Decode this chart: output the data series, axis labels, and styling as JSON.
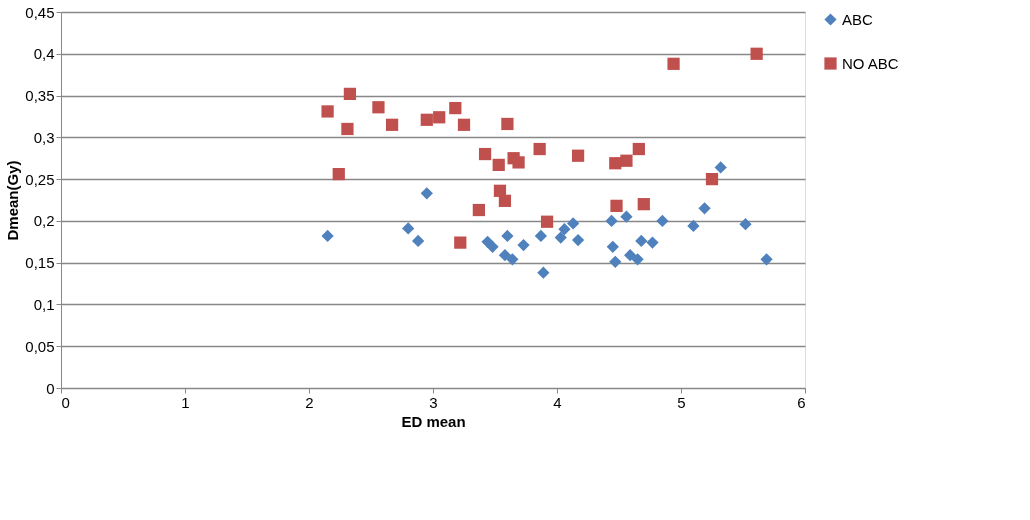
{
  "chart_data": {
    "type": "scatter",
    "xlabel": "ED mean",
    "ylabel": "Dmean(Gy)",
    "xlim": [
      0,
      6
    ],
    "xticks": [
      0,
      1,
      2,
      3,
      4,
      5,
      6
    ],
    "ylim": [
      0,
      0.45
    ],
    "yticks": [
      {
        "value": 0,
        "label": "0"
      },
      {
        "value": 0.05,
        "label": "0,05"
      },
      {
        "value": 0.1,
        "label": "0,1"
      },
      {
        "value": 0.15,
        "label": "0,15"
      },
      {
        "value": 0.2,
        "label": "0,2"
      },
      {
        "value": 0.25,
        "label": "0,25"
      },
      {
        "value": 0.3,
        "label": "0,3"
      },
      {
        "value": 0.35,
        "label": "0,35"
      },
      {
        "value": 0.4,
        "label": "0,4"
      },
      {
        "value": 0.45,
        "label": "0,45"
      }
    ],
    "grid": "y",
    "legend": "right",
    "series": [
      {
        "name": "ABC",
        "color": "#4f81bd",
        "marker": "diamond",
        "x": [
          2.15,
          2.8,
          2.88,
          2.95,
          3.44,
          3.48,
          3.6,
          3.58,
          3.64,
          3.73,
          3.87,
          3.89,
          4.03,
          4.06,
          4.13,
          4.17,
          4.44,
          4.45,
          4.47,
          4.56,
          4.59,
          4.65,
          4.68,
          4.77,
          4.85,
          5.1,
          5.19,
          5.32,
          5.52,
          5.69
        ],
        "values": [
          0.182,
          0.191,
          0.176,
          0.233,
          0.175,
          0.169,
          0.182,
          0.159,
          0.154,
          0.171,
          0.182,
          0.138,
          0.18,
          0.19,
          0.197,
          0.177,
          0.2,
          0.169,
          0.151,
          0.205,
          0.159,
          0.154,
          0.176,
          0.174,
          0.2,
          0.194,
          0.215,
          0.264,
          0.196,
          0.154
        ]
      },
      {
        "name": "NO ABC",
        "color": "#c0504d",
        "marker": "square",
        "x": [
          2.15,
          2.33,
          2.31,
          2.24,
          2.56,
          2.67,
          2.95,
          3.05,
          3.18,
          3.25,
          3.22,
          3.37,
          3.42,
          3.53,
          3.6,
          3.54,
          3.58,
          3.65,
          3.69,
          3.86,
          3.92,
          4.17,
          4.47,
          4.48,
          4.56,
          4.66,
          4.7,
          4.94,
          5.25,
          5.61
        ],
        "values": [
          0.331,
          0.352,
          0.31,
          0.256,
          0.336,
          0.315,
          0.321,
          0.324,
          0.335,
          0.315,
          0.174,
          0.213,
          0.28,
          0.267,
          0.316,
          0.236,
          0.224,
          0.275,
          0.27,
          0.286,
          0.199,
          0.278,
          0.269,
          0.218,
          0.272,
          0.286,
          0.22,
          0.388,
          0.25,
          0.4
        ]
      }
    ]
  }
}
